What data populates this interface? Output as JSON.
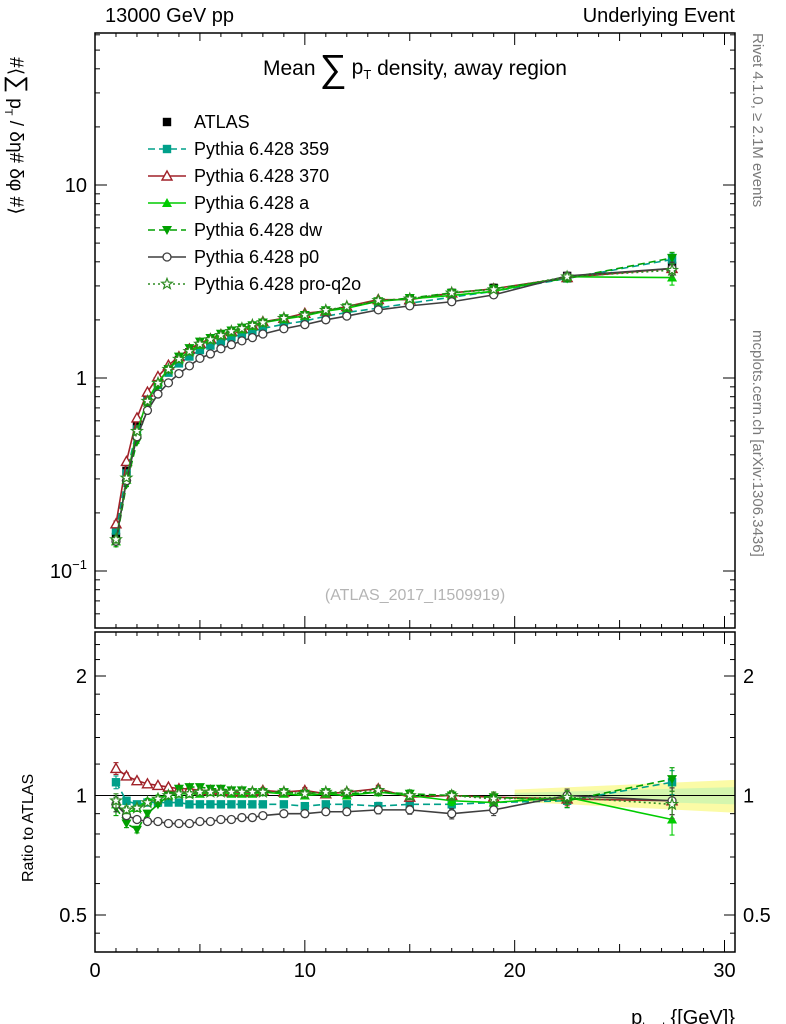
{
  "header": {
    "left": "13000 GeV pp",
    "right": "Underlying Event"
  },
  "titles": {
    "main": {
      "prefix": "Mean",
      "sum": "∑",
      "p": "p",
      "sub": "T",
      "suffix": " density, away region"
    },
    "ylabel": {
      "pre": "#⟨",
      "sum": "∑",
      "p": " p",
      "sub": "T",
      "post": " / δη# δφ #⟩"
    },
    "ratio_ylabel": "Ratio to ATLAS",
    "watermark": "(ATLAS_2017_I1509919)",
    "xlabel": {
      "p": "p",
      "sup": "lead",
      "sub": "T",
      "rest": " {[GeV]}"
    }
  },
  "side": {
    "rivet": "Rivet 4.1.0, ≥ 2.1M events",
    "mcplots": "mcplots.cern.ch [arXiv:1306.3436]"
  },
  "legend": {
    "atlas_label": "ATLAS"
  },
  "chart_data": {
    "type": "line",
    "title": "Mean ∑pT density, away region",
    "xlabel": "pT lead [GeV]",
    "ylabel": "⟨∑ pT / δη δφ⟩",
    "ylabel_ratio": "Ratio to ATLAS",
    "x": [
      1,
      1.5,
      2,
      2.5,
      3,
      3.5,
      4,
      4.5,
      5,
      5.5,
      6,
      6.5,
      7,
      7.5,
      8,
      9,
      10,
      11,
      12,
      13.5,
      15,
      17,
      19,
      22.5,
      27.5
    ],
    "atlas": {
      "label": "ATLAS",
      "y": [
        0.15,
        0.33,
        0.57,
        0.79,
        0.96,
        1.11,
        1.24,
        1.36,
        1.47,
        1.55,
        1.63,
        1.71,
        1.77,
        1.84,
        1.9,
        2.0,
        2.1,
        2.2,
        2.3,
        2.45,
        2.57,
        2.76,
        2.93,
        3.38,
        3.81
      ],
      "yerr_rel": 0.045
    },
    "ratio_err": [
      0.04,
      0.02,
      0.015,
      0.013,
      0.012,
      0.012,
      0.012,
      0.012,
      0.012,
      0.013,
      0.013,
      0.014,
      0.014,
      0.015,
      0.015,
      0.016,
      0.017,
      0.018,
      0.019,
      0.021,
      0.023,
      0.027,
      0.03,
      0.038,
      0.075
    ],
    "series": [
      {
        "id": "359",
        "label": "Pythia 6.428 359",
        "color": "#00A08A",
        "line": "dashed",
        "marker": "square",
        "ratio": [
          1.08,
          0.97,
          0.95,
          0.96,
          0.96,
          0.96,
          0.96,
          0.95,
          0.95,
          0.95,
          0.95,
          0.95,
          0.95,
          0.95,
          0.95,
          0.95,
          0.94,
          0.95,
          0.95,
          0.94,
          0.95,
          0.95,
          0.96,
          0.97,
          1.08
        ]
      },
      {
        "id": "370",
        "label": "Pythia 6.428 370",
        "color": "#A02128",
        "line": "solid",
        "marker": "triangle-open",
        "ratio": [
          1.17,
          1.12,
          1.09,
          1.07,
          1.06,
          1.05,
          1.04,
          1.04,
          1.03,
          1.03,
          1.03,
          1.02,
          1.02,
          1.02,
          1.03,
          1.02,
          1.03,
          1.01,
          1.02,
          1.04,
          0.99,
          1.0,
          0.99,
          0.98,
          0.97
        ]
      },
      {
        "id": "a",
        "label": "Pythia 6.428 a",
        "color": "#00CC00",
        "line": "solid",
        "marker": "triangle",
        "ratio": [
          0.95,
          0.9,
          0.93,
          0.97,
          0.99,
          1.0,
          1.01,
          1.01,
          1.01,
          1.02,
          1.02,
          1.01,
          1.01,
          1.01,
          1.02,
          1.01,
          1.0,
          1.01,
          1.0,
          1.02,
          1.0,
          0.97,
          0.96,
          0.99,
          0.87
        ]
      },
      {
        "id": "dw",
        "label": "Pythia 6.428 dw",
        "color": "#00A000",
        "line": "dashed",
        "marker": "triangle-down",
        "ratio": [
          0.93,
          0.85,
          0.82,
          0.9,
          0.95,
          1.0,
          1.04,
          1.05,
          1.05,
          1.04,
          1.04,
          1.03,
          1.03,
          1.02,
          1.02,
          1.02,
          1.01,
          1.02,
          1.01,
          1.02,
          1.01,
          1.0,
          0.99,
          0.97,
          1.1
        ]
      },
      {
        "id": "p0",
        "label": "Pythia 6.428 p0",
        "color": "#3F3F3F",
        "line": "solid",
        "marker": "circle-open",
        "ratio": [
          0.95,
          0.89,
          0.87,
          0.86,
          0.86,
          0.85,
          0.85,
          0.85,
          0.86,
          0.86,
          0.87,
          0.87,
          0.88,
          0.88,
          0.89,
          0.9,
          0.9,
          0.91,
          0.91,
          0.92,
          0.92,
          0.9,
          0.92,
          1.0,
          0.97
        ]
      },
      {
        "id": "pro-q2o",
        "label": "Pythia 6.428 pro-q2o",
        "color": "#2E8B22",
        "line": "dotted",
        "marker": "star-open",
        "ratio": [
          0.97,
          0.92,
          0.93,
          0.96,
          0.98,
          1.0,
          1.01,
          1.01,
          1.02,
          1.02,
          1.02,
          1.02,
          1.02,
          1.02,
          1.02,
          1.02,
          1.01,
          1.02,
          1.02,
          1.03,
          1.0,
          1.0,
          0.98,
          0.99,
          0.95
        ]
      }
    ],
    "band": {
      "x0": 20,
      "x1": 30.5,
      "outer0": 0.035,
      "outer1": 0.095,
      "inner0": 0.015,
      "inner1": 0.05,
      "outer_color": "#FBFBA6",
      "inner_color": "#D4F6AE"
    },
    "axes": {
      "x": {
        "min": 0,
        "max": 30.5,
        "ticks": [
          {
            "v": 0,
            "label": "0"
          },
          {
            "v": 10,
            "label": "10"
          },
          {
            "v": 20,
            "label": "20"
          },
          {
            "v": 30,
            "label": "30"
          }
        ]
      },
      "y_main": {
        "scale": "log",
        "min": 0.05,
        "max": 60,
        "ticks": [
          {
            "v": 10,
            "base": "10"
          },
          {
            "v": 1,
            "base": "1"
          },
          {
            "v": 0.1,
            "base": "10",
            "exp": "−1"
          }
        ]
      },
      "y_ratio": {
        "scale": "log",
        "min": 0.4,
        "max": 2.6,
        "ticks": [
          {
            "v": 2,
            "label": "2"
          },
          {
            "v": 1,
            "label": "1"
          },
          {
            "v": 0.5,
            "label": "0.5"
          }
        ]
      }
    }
  }
}
